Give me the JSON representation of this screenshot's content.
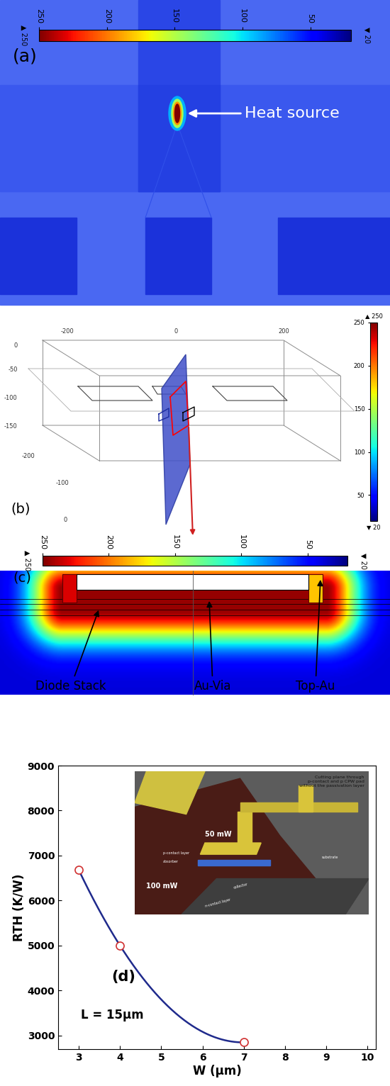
{
  "figure": {
    "panel_a": {
      "label": "(a)",
      "annotation": "Heat source",
      "colorbar": {
        "range": [
          20,
          250
        ],
        "ticks": [
          250,
          200,
          150,
          100,
          50
        ],
        "range_labels": [
          "▲ 250",
          "▼ 20"
        ]
      }
    },
    "panel_b": {
      "label": "(b)",
      "axis_labels": [
        "-200",
        "0",
        "200",
        "0",
        "-50",
        "-100",
        "-150",
        "-200",
        "-100",
        "0"
      ],
      "colorbar": {
        "range": [
          20,
          250
        ],
        "ticks": [
          250,
          200,
          150,
          100,
          50
        ],
        "range_labels": [
          "▲ 250",
          "▼ 20"
        ]
      }
    },
    "panel_c": {
      "label": "(c)",
      "annotations": [
        "Diode Stack",
        "Au-Via",
        "Top-Au"
      ],
      "colorbar": {
        "range": [
          20,
          250
        ],
        "ticks": [
          250,
          200,
          150,
          100,
          50
        ],
        "range_labels": [
          "▲ 250",
          "▼ 20"
        ]
      }
    }
  },
  "chart_data": {
    "type": "line",
    "annotations": [
      "(d)",
      "L = 15μm"
    ],
    "x_label": "W (μm)",
    "y_label": "RTH (K/W)",
    "x": [
      3,
      4,
      7
    ],
    "values": [
      6680,
      5000,
      2850
    ],
    "xlim": [
      2.5,
      10.2
    ],
    "ylim": [
      2700,
      9000
    ],
    "xticks": [
      3,
      4,
      5,
      6,
      7,
      8,
      9,
      10
    ],
    "yticks": [
      3000,
      4000,
      5000,
      6000,
      7000,
      8000,
      9000
    ],
    "color": "#1f2a8c",
    "marker": "o",
    "line_style": "solid",
    "inset": {
      "caption": "Cutting plane through\np-contact and p CPW pad\nwithout the passivation layer",
      "texts": [
        "50 mW",
        "100 mW",
        "p-contact layer",
        "absorber",
        "collector",
        "n-contact layer",
        "substrate"
      ]
    }
  }
}
